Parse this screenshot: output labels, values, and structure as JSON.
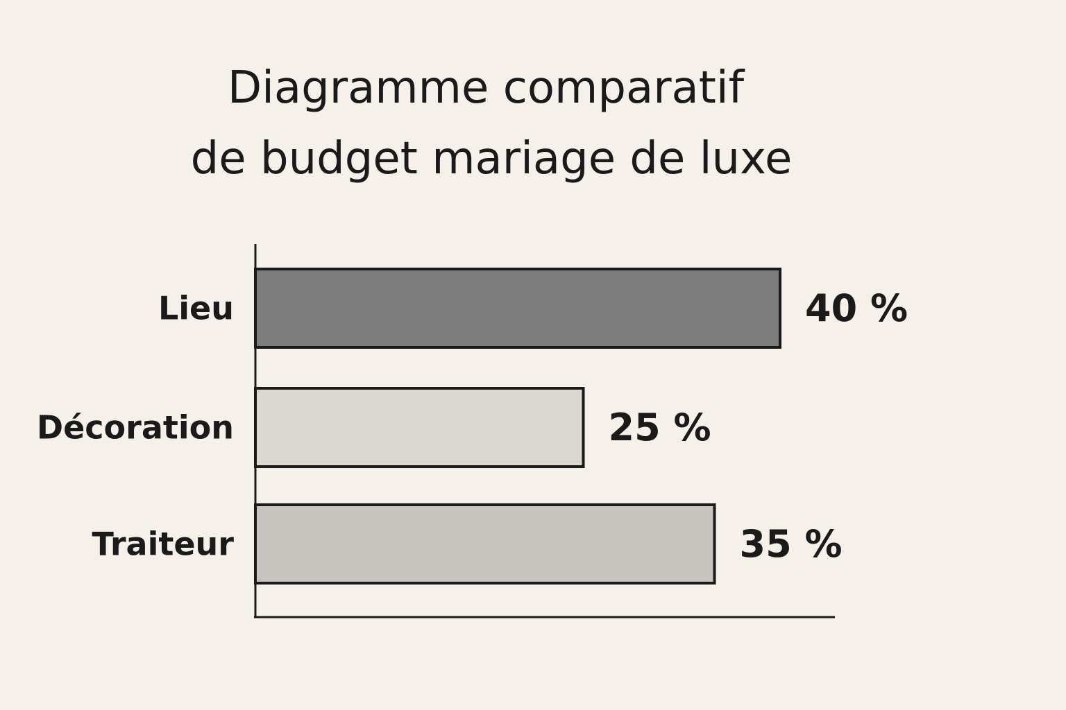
{
  "chart_data": {
    "type": "bar",
    "orientation": "horizontal",
    "title_lines": [
      "Diagramme comparatif",
      "de budget mariage de luxe"
    ],
    "categories": [
      "Lieu",
      "Décoration",
      "Traiteur"
    ],
    "values": [
      40,
      25,
      35
    ],
    "value_labels": [
      "40 %",
      "25 %",
      "35 %"
    ],
    "unit": "%",
    "xlim": [
      0,
      42
    ],
    "grid": false,
    "legend": "none",
    "bar_colors": [
      "#7c7c7c",
      "#dad6d0",
      "#c7c4bf"
    ],
    "xlabel": "",
    "ylabel": ""
  }
}
